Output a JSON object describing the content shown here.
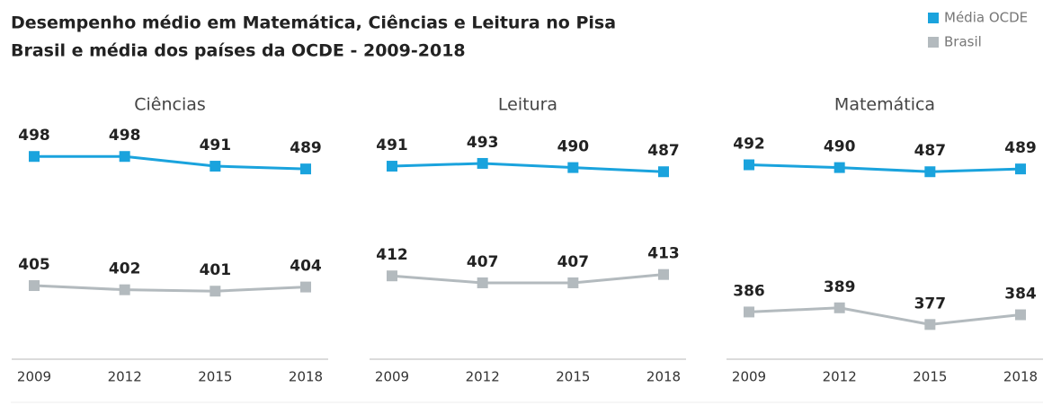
{
  "title": "Desempenho médio em Matemática, Ciências e Leitura no Pisa",
  "subtitle": "Brasil e média dos países da OCDE - 2009-2018",
  "chart_data": [
    {
      "type": "line",
      "title": "Ciências",
      "categories": [
        "2009",
        "2012",
        "2015",
        "2018"
      ],
      "ylim": [
        352,
        546
      ],
      "series": [
        {
          "name": "Média OCDE",
          "color": "#1aa3dd",
          "values": [
            498,
            498,
            491,
            489
          ]
        },
        {
          "name": "Brasil",
          "color": "#b3babe",
          "values": [
            405,
            402,
            401,
            404
          ]
        }
      ]
    },
    {
      "type": "line",
      "title": "Leitura",
      "categories": [
        "2009",
        "2012",
        "2015",
        "2018"
      ],
      "ylim": [
        352,
        546
      ],
      "series": [
        {
          "name": "Média OCDE",
          "color": "#1aa3dd",
          "values": [
            491,
            493,
            490,
            487
          ]
        },
        {
          "name": "Brasil",
          "color": "#b3babe",
          "values": [
            412,
            407,
            407,
            413
          ]
        }
      ]
    },
    {
      "type": "line",
      "title": "Matemática",
      "categories": [
        "2009",
        "2012",
        "2015",
        "2018"
      ],
      "ylim": [
        352,
        546
      ],
      "series": [
        {
          "name": "Média OCDE",
          "color": "#1aa3dd",
          "values": [
            492,
            490,
            487,
            489
          ]
        },
        {
          "name": "Brasil",
          "color": "#b3babe",
          "values": [
            386,
            389,
            377,
            384
          ]
        }
      ]
    }
  ]
}
